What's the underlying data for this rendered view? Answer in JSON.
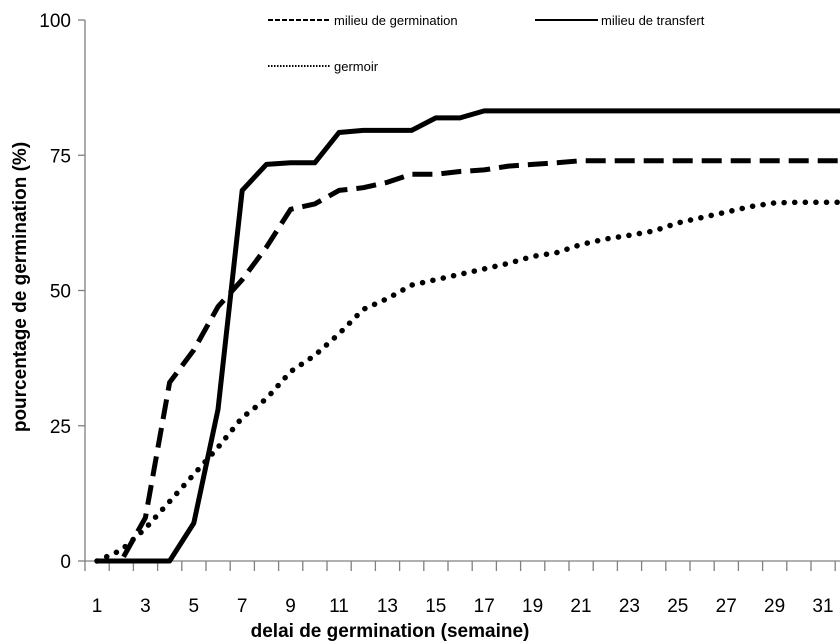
{
  "chart_data": {
    "type": "line",
    "xlabel": "delai de germination (semaine)",
    "ylabel": "pourcentage de germination (%)",
    "xlim": [
      1,
      31.5
    ],
    "ylim": [
      0,
      100
    ],
    "x_ticks": [
      "1",
      "3",
      "5",
      "7",
      "9",
      "11",
      "13",
      "15",
      "17",
      "19",
      "21",
      "23",
      "25",
      "27",
      "29",
      "31"
    ],
    "y_ticks": [
      "0",
      "25",
      "50",
      "75",
      "100"
    ],
    "legend_position": "top",
    "grid": false,
    "x": [
      1,
      2,
      3,
      4,
      5,
      6,
      7,
      8,
      9,
      10,
      11,
      12,
      13,
      14,
      15,
      16,
      17,
      18,
      19,
      20,
      21,
      22,
      23,
      24,
      25,
      26,
      27,
      28,
      29,
      30,
      31,
      32
    ],
    "series": [
      {
        "name": "milieu de germination",
        "style": "dashed",
        "values": [
          0,
          0,
          8,
          33,
          39,
          47,
          52,
          58,
          65,
          66,
          68.5,
          69,
          70,
          71.5,
          71.5,
          72,
          72.3,
          73,
          73.3,
          73.6,
          74,
          74,
          74,
          74,
          74,
          74,
          74,
          74,
          74,
          74,
          74,
          74
        ]
      },
      {
        "name": "milieu de transfert",
        "style": "solid",
        "values": [
          0,
          0,
          0,
          0,
          7,
          28,
          68.5,
          73.3,
          73.6,
          73.6,
          79.2,
          79.6,
          79.6,
          79.6,
          81.9,
          81.9,
          83.2,
          83.2,
          83.2,
          83.2,
          83.2,
          83.2,
          83.2,
          83.2,
          83.2,
          83.2,
          83.2,
          83.2,
          83.2,
          83.2,
          83.2,
          83.2
        ]
      },
      {
        "name": "germoir",
        "style": "dotted",
        "values": [
          0,
          2,
          6,
          11,
          16,
          21,
          26.5,
          30,
          35,
          38,
          42,
          46.5,
          48.5,
          51,
          52,
          53,
          54,
          55,
          56.3,
          57,
          58.5,
          59.5,
          60.2,
          61,
          62.5,
          63.5,
          64.5,
          65.5,
          66.2,
          66.3,
          66.3,
          66.3
        ]
      }
    ],
    "colors": {
      "line": "#000000",
      "axis": "#808080",
      "background": "#ffffff"
    }
  }
}
